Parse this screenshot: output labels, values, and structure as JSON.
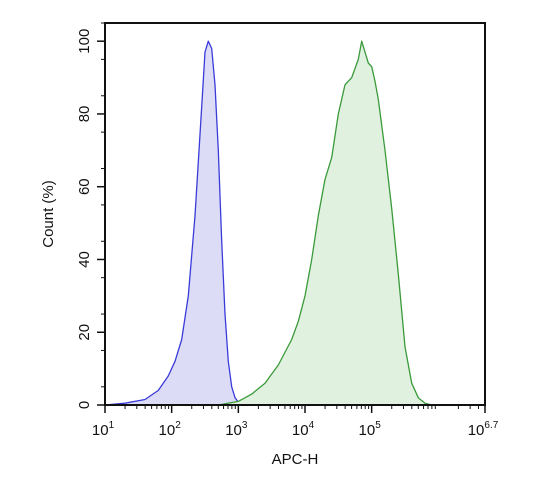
{
  "chart_data": {
    "type": "area",
    "title": "",
    "xlabel": "APC-H",
    "ylabel": "Count (%)",
    "x_scale": "log",
    "xlim": [
      1,
      6.7
    ],
    "ylim": [
      0,
      105
    ],
    "x_ticks": [
      {
        "base": "10",
        "exp": "1"
      },
      {
        "base": "10",
        "exp": "2"
      },
      {
        "base": "10",
        "exp": "3"
      },
      {
        "base": "10",
        "exp": "4"
      },
      {
        "base": "10",
        "exp": "5"
      },
      {
        "base": "10",
        "exp": "6.7"
      }
    ],
    "y_ticks": [
      "0",
      "20",
      "40",
      "60",
      "80",
      "100"
    ],
    "grid": false,
    "series": [
      {
        "color": "#3b3bd9",
        "fill": "#dcdcf7",
        "x": [
          1.0,
          1.3,
          1.6,
          1.8,
          1.95,
          2.05,
          2.15,
          2.25,
          2.35,
          2.45,
          2.5,
          2.55,
          2.6,
          2.65,
          2.7,
          2.75,
          2.8,
          2.85,
          2.9,
          2.95,
          3.0,
          3.05,
          3.1
        ],
        "values": [
          0,
          0.5,
          1.5,
          4,
          8,
          12,
          18,
          30,
          52,
          82,
          97,
          100,
          98,
          88,
          70,
          45,
          25,
          12,
          5,
          2,
          0.8,
          0.3,
          0
        ]
      },
      {
        "color": "#3a9a3a",
        "fill": "#e1f1df",
        "x": [
          2.7,
          3.0,
          3.2,
          3.4,
          3.6,
          3.8,
          3.9,
          4.0,
          4.1,
          4.2,
          4.3,
          4.4,
          4.5,
          4.6,
          4.7,
          4.8,
          4.85,
          4.9,
          4.95,
          5.0,
          5.05,
          5.1,
          5.2,
          5.3,
          5.4,
          5.5,
          5.6,
          5.7,
          5.8,
          5.9
        ],
        "values": [
          0,
          1,
          3,
          6,
          11,
          18,
          23,
          30,
          40,
          52,
          62,
          68,
          80,
          88,
          90,
          95,
          100,
          97,
          94,
          93,
          89,
          84,
          70,
          54,
          36,
          16,
          6,
          2,
          0.5,
          0
        ]
      }
    ]
  }
}
